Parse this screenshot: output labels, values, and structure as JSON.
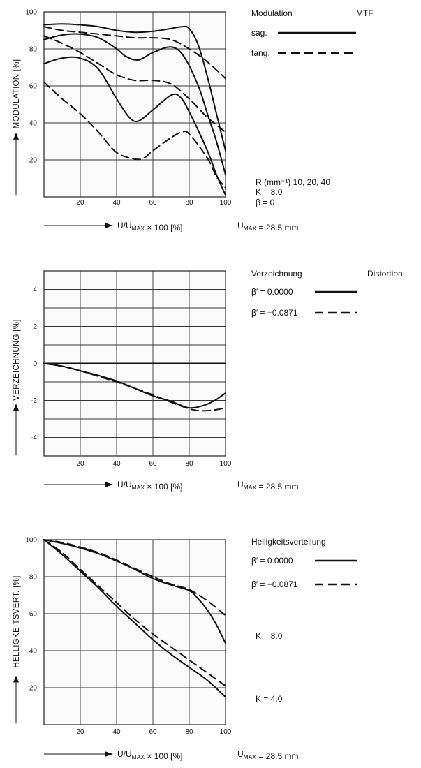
{
  "chart_data": [
    {
      "type": "line",
      "ylabel": "MODULATION [%]",
      "xlabel": "U/UMAX × 100 [%]",
      "xlim": [
        0,
        100
      ],
      "ylim": [
        0,
        100
      ],
      "xticks": [
        20,
        40,
        60,
        80,
        100
      ],
      "yticks": [
        20,
        40,
        60,
        80,
        100
      ],
      "grid": true,
      "legend_title": "Modulation",
      "legend_title_right": "MTF",
      "legend": [
        {
          "label": "sag.",
          "style": "solid"
        },
        {
          "label": "tang.",
          "style": "dashed"
        }
      ],
      "notes": [
        "R (mm⁻¹) 10, 20, 40",
        "K = 8.0",
        "β = 0"
      ],
      "umax": "UMAX = 28.5 mm",
      "series": [
        {
          "style": "solid",
          "x": [
            0,
            10,
            20,
            30,
            40,
            50,
            60,
            70,
            76,
            80,
            85,
            90,
            95,
            100
          ],
          "y": [
            93,
            93.5,
            93,
            92,
            90,
            89,
            89.5,
            91,
            92,
            91,
            82,
            65,
            45,
            25
          ]
        },
        {
          "style": "dashed",
          "x": [
            0,
            10,
            20,
            30,
            40,
            50,
            60,
            70,
            80,
            90,
            100
          ],
          "y": [
            92,
            90,
            89,
            88,
            87,
            86,
            86,
            85,
            80,
            73,
            64
          ]
        },
        {
          "style": "solid",
          "x": [
            0,
            10,
            20,
            30,
            40,
            45,
            52,
            60,
            70,
            77,
            85,
            90,
            95,
            100
          ],
          "y": [
            85,
            87.5,
            88,
            86,
            80,
            76,
            74,
            78,
            81,
            76,
            60,
            45,
            30,
            12
          ]
        },
        {
          "style": "dashed",
          "x": [
            0,
            10,
            20,
            30,
            40,
            50,
            60,
            70,
            80,
            90,
            100
          ],
          "y": [
            87,
            83,
            78,
            72,
            66,
            63,
            63,
            61,
            53,
            43,
            35
          ]
        },
        {
          "style": "solid",
          "x": [
            0,
            10,
            20,
            30,
            40,
            47,
            52,
            60,
            70,
            75,
            80,
            90,
            95,
            100
          ],
          "y": [
            72,
            75,
            75,
            69,
            53,
            43,
            41,
            47,
            55,
            54,
            46,
            25,
            12,
            1
          ]
        },
        {
          "style": "dashed",
          "x": [
            0,
            10,
            20,
            30,
            40,
            50,
            55,
            60,
            70,
            76,
            80,
            90,
            95,
            100
          ],
          "y": [
            62,
            53,
            45,
            35,
            24,
            20.5,
            21,
            25,
            32,
            35,
            34,
            21,
            11,
            5
          ]
        }
      ]
    },
    {
      "type": "line",
      "ylabel": "VERZEICHNUNG [%]",
      "xlabel": "U/UMAX × 100 [%]",
      "xlim": [
        0,
        100
      ],
      "ylim": [
        -5,
        5
      ],
      "xticks": [
        20,
        40,
        60,
        80,
        100
      ],
      "yticks": [
        4,
        2,
        0,
        -2,
        -4
      ],
      "grid": true,
      "legend_title": "Verzeichnung",
      "legend_title_right": "Distortion",
      "legend": [
        {
          "label": "β′ =   0.0000",
          "style": "solid"
        },
        {
          "label": "β′ = −0.0871",
          "style": "dashed"
        }
      ],
      "umax": "UMAX = 28.5 mm",
      "series": [
        {
          "style": "solid",
          "x": [
            0,
            100
          ],
          "y": [
            0,
            0
          ]
        },
        {
          "style": "solid",
          "x": [
            0,
            10,
            20,
            30,
            40,
            50,
            60,
            70,
            75,
            80,
            85,
            90,
            95,
            100
          ],
          "y": [
            0,
            -0.15,
            -0.4,
            -0.65,
            -0.95,
            -1.35,
            -1.75,
            -2.05,
            -2.25,
            -2.4,
            -2.35,
            -2.2,
            -1.95,
            -1.6
          ]
        },
        {
          "style": "dashed",
          "x": [
            0,
            10,
            20,
            30,
            40,
            50,
            60,
            70,
            80,
            85,
            90,
            95,
            100
          ],
          "y": [
            0,
            -0.15,
            -0.4,
            -0.7,
            -1.0,
            -1.35,
            -1.7,
            -2.1,
            -2.45,
            -2.55,
            -2.55,
            -2.5,
            -2.4
          ]
        }
      ]
    },
    {
      "type": "line",
      "ylabel": "HELLIGKEITSVERT. [%]",
      "xlabel": "U/UMAX × 100 [%]",
      "xlim": [
        0,
        100
      ],
      "ylim": [
        0,
        100
      ],
      "xticks": [
        20,
        40,
        60,
        80,
        100
      ],
      "yticks": [
        20,
        40,
        60,
        80,
        100
      ],
      "grid": true,
      "legend_title": "Helligkeitsverteilung",
      "legend": [
        {
          "label": "β′ =   0.0000",
          "style": "solid"
        },
        {
          "label": "β′ = −0.0871",
          "style": "dashed"
        }
      ],
      "notes": [
        "K = 8.0",
        "K = 4.0"
      ],
      "umax": "UMAX = 28.5 mm",
      "series": [
        {
          "style": "solid",
          "x": [
            0,
            10,
            20,
            30,
            40,
            50,
            60,
            70,
            80,
            85,
            90,
            95,
            100
          ],
          "y": [
            100,
            98,
            95.5,
            92.5,
            88.5,
            84,
            79,
            75.5,
            72.5,
            68,
            62,
            54,
            44
          ]
        },
        {
          "style": "dashed",
          "x": [
            0,
            10,
            20,
            30,
            40,
            50,
            60,
            70,
            80,
            90,
            100
          ],
          "y": [
            100,
            98.5,
            96,
            93,
            89,
            84.5,
            80,
            76,
            73,
            67,
            59
          ]
        },
        {
          "style": "solid",
          "x": [
            0,
            10,
            20,
            30,
            40,
            50,
            60,
            70,
            80,
            90,
            100
          ],
          "y": [
            100,
            92,
            83,
            74,
            64,
            55,
            46,
            38,
            31,
            24,
            15
          ]
        },
        {
          "style": "dashed",
          "x": [
            0,
            10,
            20,
            30,
            40,
            50,
            60,
            70,
            80,
            90,
            100
          ],
          "y": [
            100,
            93,
            84,
            75,
            66,
            57,
            49,
            42,
            35,
            28,
            21
          ]
        }
      ]
    }
  ]
}
